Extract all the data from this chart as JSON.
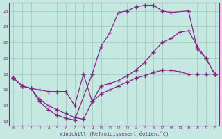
{
  "background_color": "#c5e8e0",
  "grid_color": "#a0cfc0",
  "line_color": "#882288",
  "xlim_min": -0.5,
  "xlim_max": 23.5,
  "ylim_min": 11.5,
  "ylim_max": 27.0,
  "yticks": [
    12,
    14,
    16,
    18,
    20,
    22,
    24,
    26
  ],
  "xticks": [
    0,
    1,
    2,
    3,
    4,
    5,
    6,
    7,
    8,
    9,
    10,
    11,
    12,
    13,
    14,
    15,
    16,
    17,
    18,
    19,
    20,
    21,
    22,
    23
  ],
  "xlabel": "Windchill (Refroidissement éolien,°C)",
  "line1_x": [
    0,
    1,
    2,
    3,
    4,
    5,
    6,
    7,
    9,
    10,
    11,
    12,
    13,
    14,
    15,
    16,
    17,
    18,
    20,
    21,
    22,
    23
  ],
  "line1_y": [
    17.5,
    16.5,
    16.2,
    14.5,
    13.5,
    12.8,
    12.4,
    12.2,
    18.0,
    21.5,
    23.2,
    25.8,
    26.0,
    26.5,
    26.7,
    26.7,
    26.0,
    25.8,
    26.0,
    21.2,
    20.0,
    18.0
  ],
  "line2_x": [
    0,
    1,
    2,
    3,
    4,
    5,
    6,
    7,
    8,
    9,
    10,
    11,
    12,
    13,
    14,
    15,
    16,
    17,
    18,
    19,
    20,
    21,
    22,
    23
  ],
  "line2_y": [
    17.5,
    16.5,
    16.2,
    14.8,
    14.0,
    13.5,
    13.0,
    12.5,
    12.3,
    14.5,
    15.5,
    16.0,
    16.5,
    17.0,
    17.5,
    17.8,
    18.2,
    18.5,
    18.5,
    18.3,
    18.0,
    18.0,
    18.0,
    18.0
  ],
  "line3_x": [
    0,
    1,
    2,
    3,
    4,
    5,
    6,
    7,
    8,
    9,
    10,
    11,
    12,
    13,
    14,
    15,
    16,
    17,
    18,
    19,
    20,
    21,
    22,
    23
  ],
  "line3_y": [
    17.5,
    16.5,
    16.2,
    16.0,
    15.8,
    15.8,
    15.8,
    14.0,
    18.0,
    14.5,
    16.5,
    16.8,
    17.2,
    17.8,
    18.5,
    19.5,
    20.8,
    22.0,
    22.5,
    23.3,
    23.5,
    21.5,
    20.0,
    18.0
  ]
}
